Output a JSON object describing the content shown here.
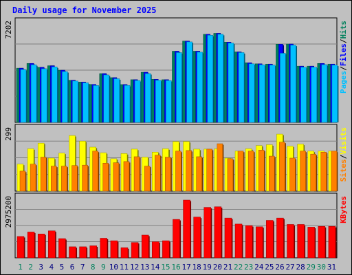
{
  "title": "Daily usage for November 2025",
  "colors": {
    "background": "#c0c0c0",
    "title": "#0000ff",
    "hits": "#00805c",
    "files": "#0000ff",
    "pages": "#00c0ff",
    "visits": "#ffff00",
    "sites": "#ff8000",
    "kbytes": "#ff0000",
    "grid": "#808080",
    "weekend_label": "#00805c",
    "weekday_label": "#000080"
  },
  "chart_data": [
    {
      "type": "bar",
      "panel": "hits-files-pages",
      "ylabel": [
        "Pages",
        "Files",
        "Hits"
      ],
      "ylabel_colors": [
        "#00c0ff",
        "#0000ff",
        "#00805c"
      ],
      "scale_label": "7202",
      "ylim": [
        0,
        7202
      ],
      "categories": [
        "1",
        "2",
        "3",
        "4",
        "5",
        "6",
        "7",
        "8",
        "9",
        "10",
        "11",
        "12",
        "13",
        "14",
        "15",
        "16",
        "17",
        "18",
        "19",
        "20",
        "21",
        "22",
        "23",
        "24",
        "25",
        "26",
        "27",
        "28",
        "29",
        "30",
        "31"
      ],
      "series": [
        {
          "name": "Hits",
          "values": [
            4000,
            4350,
            4060,
            4180,
            3850,
            3110,
            2980,
            2800,
            3600,
            3300,
            2790,
            3150,
            3700,
            3180,
            3150,
            5250,
            6000,
            5250,
            6500,
            6570,
            5920,
            5200,
            4400,
            4320,
            4300,
            5770,
            5780,
            4150,
            4150,
            4350,
            4300
          ]
        },
        {
          "name": "Files",
          "values": [
            4000,
            4350,
            4060,
            4180,
            3850,
            3110,
            2980,
            2800,
            3600,
            3300,
            2790,
            3150,
            3700,
            3180,
            3150,
            5250,
            6000,
            5250,
            6500,
            6570,
            5920,
            5200,
            4400,
            4320,
            4300,
            5770,
            5780,
            4150,
            4150,
            4350,
            4300
          ]
        },
        {
          "name": "Pages",
          "values": [
            3900,
            4250,
            3960,
            4090,
            3750,
            3050,
            2920,
            2720,
            3500,
            3220,
            2730,
            3090,
            3600,
            3110,
            3090,
            5150,
            5940,
            5180,
            6430,
            6500,
            5850,
            5150,
            4320,
            4250,
            4230,
            5100,
            5700,
            4070,
            4070,
            4260,
            4230
          ]
        }
      ]
    },
    {
      "type": "bar",
      "panel": "visits-sites",
      "ylabel": [
        "Sites",
        "Visits"
      ],
      "ylabel_colors": [
        "#ff8000",
        "#ffff00"
      ],
      "scale_label": "299",
      "ylim": [
        0,
        299
      ],
      "categories": [
        "1",
        "2",
        "3",
        "4",
        "5",
        "6",
        "7",
        "8",
        "9",
        "10",
        "11",
        "12",
        "13",
        "14",
        "15",
        "16",
        "17",
        "18",
        "19",
        "20",
        "21",
        "22",
        "23",
        "24",
        "25",
        "26",
        "27",
        "28",
        "29",
        "30",
        "31"
      ],
      "series": [
        {
          "name": "Visits",
          "values": [
            135,
            212,
            240,
            165,
            190,
            278,
            250,
            220,
            192,
            162,
            188,
            210,
            170,
            195,
            212,
            248,
            248,
            210,
            210,
            212,
            165,
            200,
            212,
            228,
            232,
            285,
            225,
            235,
            200,
            200,
            200
          ]
        },
        {
          "name": "Sites",
          "values": [
            100,
            135,
            170,
            125,
            125,
            128,
            130,
            200,
            140,
            142,
            148,
            172,
            125,
            180,
            170,
            200,
            203,
            172,
            210,
            237,
            162,
            200,
            200,
            205,
            175,
            245,
            165,
            200,
            185,
            195,
            200
          ]
        }
      ]
    },
    {
      "type": "bar",
      "panel": "kbytes",
      "ylabel": [
        "KBytes"
      ],
      "ylabel_colors": [
        "#ff0000"
      ],
      "scale_label": "2975200",
      "ylim": [
        0,
        2975200
      ],
      "categories": [
        "1",
        "2",
        "3",
        "4",
        "5",
        "6",
        "7",
        "8",
        "9",
        "10",
        "11",
        "12",
        "13",
        "14",
        "15",
        "16",
        "17",
        "18",
        "19",
        "20",
        "21",
        "22",
        "23",
        "24",
        "25",
        "26",
        "27",
        "28",
        "29",
        "30",
        "31"
      ],
      "series": [
        {
          "name": "KBytes",
          "values": [
            1100000,
            1330000,
            1230000,
            1390000,
            990000,
            570000,
            570000,
            620000,
            1010000,
            880000,
            520000,
            790000,
            1170000,
            830000,
            880000,
            1980000,
            2975200,
            2100000,
            2600000,
            2630000,
            2050000,
            1740000,
            1660000,
            1600000,
            1930000,
            2050000,
            1720000,
            1720000,
            1580000,
            1620000,
            1620000
          ]
        }
      ]
    }
  ],
  "x_axis": {
    "labels": [
      "1",
      "2",
      "3",
      "4",
      "5",
      "6",
      "7",
      "8",
      "9",
      "10",
      "11",
      "12",
      "13",
      "14",
      "15",
      "16",
      "17",
      "18",
      "19",
      "20",
      "21",
      "22",
      "23",
      "24",
      "25",
      "26",
      "27",
      "28",
      "29",
      "30",
      "31"
    ],
    "weekend": [
      1,
      2,
      8,
      9,
      15,
      16,
      22,
      23,
      29,
      30
    ]
  }
}
